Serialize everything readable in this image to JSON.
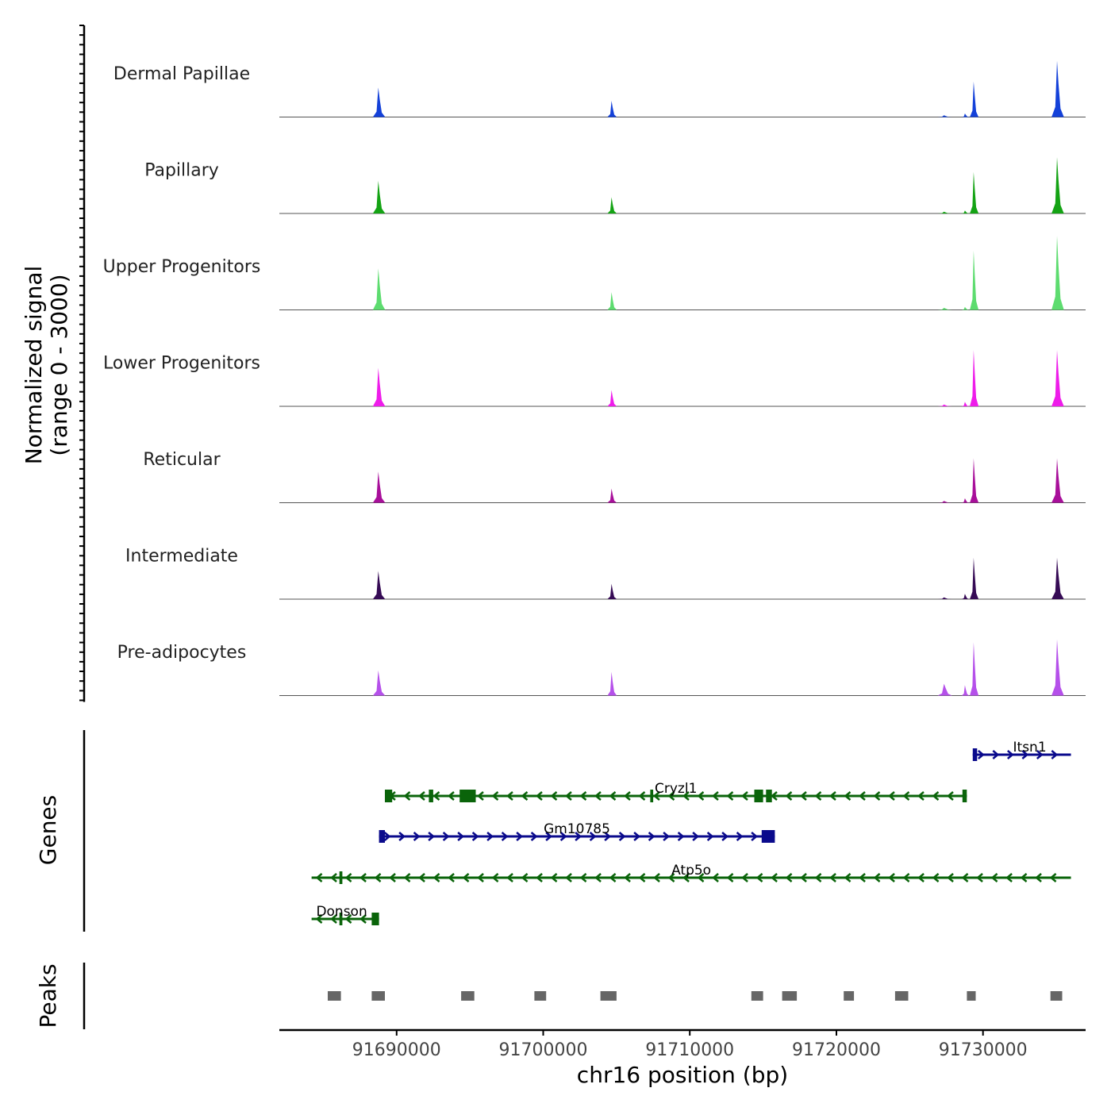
{
  "chart_data": {
    "type": "coverage-track",
    "region": {
      "chromosome": "chr16",
      "start": 91682000,
      "end": 91737000
    },
    "coverage": {
      "ylabel_line1": "Normalized signal",
      "ylabel_line2": "(range 0 - 3000)",
      "ylim": [
        0,
        3000
      ],
      "peak_positions": [
        91684500,
        91688800,
        91694800,
        91704700,
        91714700,
        91724400,
        91727400,
        91728800,
        91729400,
        91735100
      ],
      "tracks": [
        {
          "name": "Dermal Papillae",
          "color": "#1441d9",
          "values": [
            0,
            1000,
            0,
            550,
            0,
            0,
            60,
            120,
            1200,
            1900,
            1900,
            80
          ]
        },
        {
          "name": "Papillary",
          "color": "#14a314",
          "values": [
            0,
            1100,
            0,
            550,
            0,
            0,
            60,
            100,
            1400,
            1900,
            2000,
            0
          ]
        },
        {
          "name": "Upper Progenitors",
          "color": "#5ddc6f",
          "values": [
            0,
            1400,
            0,
            600,
            0,
            0,
            70,
            100,
            2000,
            2500,
            3000,
            0
          ]
        },
        {
          "name": "Lower Progenitors",
          "color": "#ee1cea",
          "values": [
            0,
            1300,
            0,
            550,
            0,
            0,
            60,
            150,
            1900,
            1900,
            2100,
            0
          ]
        },
        {
          "name": "Reticular",
          "color": "#a80f9a",
          "values": [
            0,
            1050,
            0,
            480,
            0,
            0,
            60,
            150,
            1500,
            1500,
            1400,
            0
          ]
        },
        {
          "name": "Intermediate",
          "color": "#360b55",
          "values": [
            0,
            950,
            0,
            520,
            0,
            0,
            60,
            180,
            1400,
            1400,
            1300,
            0
          ]
        },
        {
          "name": "Pre-adipocytes",
          "color": "#b550ea",
          "values": [
            0,
            850,
            0,
            800,
            0,
            0,
            400,
            350,
            1800,
            1900,
            1800,
            750
          ]
        }
      ]
    },
    "genes": {
      "label": "Genes",
      "items": [
        {
          "name": "Itsn1",
          "strand": "+",
          "start": 91729300,
          "end": 91736000,
          "row": 0,
          "color": "#0a0a8c",
          "exons": [
            [
              91729300,
              91729600
            ]
          ]
        },
        {
          "name": "Cryzl1",
          "strand": "-",
          "start": 91689200,
          "end": 91728900,
          "row": 1,
          "color": "#0a640a",
          "exons": [
            [
              91689200,
              91689700
            ],
            [
              91692200,
              91692500
            ],
            [
              91694300,
              91695400
            ],
            [
              91707300,
              91707500
            ],
            [
              91714400,
              91715000
            ],
            [
              91715200,
              91715600
            ],
            [
              91728600,
              91728900
            ]
          ]
        },
        {
          "name": "Gm10785",
          "strand": "+",
          "start": 91688800,
          "end": 91715800,
          "row": 2,
          "color": "#0a0a8c",
          "exons": [
            [
              91688800,
              91689200
            ],
            [
              91714900,
              91715800
            ]
          ]
        },
        {
          "name": "Atp5o",
          "strand": "-",
          "start": 91684200,
          "end": 91736000,
          "row": 3,
          "color": "#0a640a",
          "exons": [
            [
              91686100,
              91686300
            ]
          ]
        },
        {
          "name": "Donson",
          "strand": "-",
          "start": 91684200,
          "end": 91688800,
          "row": 4,
          "color": "#0a640a",
          "exons": [
            [
              91686100,
              91686300
            ],
            [
              91688300,
              91688800
            ]
          ]
        }
      ]
    },
    "peaks": {
      "label": "Peaks",
      "color": "#666666",
      "regions": [
        [
          91685300,
          91686200
        ],
        [
          91688300,
          91689200
        ],
        [
          91694400,
          91695300
        ],
        [
          91699400,
          91700200
        ],
        [
          91703900,
          91705000
        ],
        [
          91714200,
          91715000
        ],
        [
          91716300,
          91717300
        ],
        [
          91720500,
          91721200
        ],
        [
          91724000,
          91724900
        ],
        [
          91728900,
          91729500
        ],
        [
          91734600,
          91735400
        ]
      ]
    },
    "xaxis": {
      "label": "chr16 position (bp)",
      "ticks": [
        91690000,
        91700000,
        91710000,
        91720000,
        91730000
      ],
      "tick_labels": [
        "91690000",
        "91700000",
        "91710000",
        "91720000",
        "91730000"
      ]
    }
  }
}
